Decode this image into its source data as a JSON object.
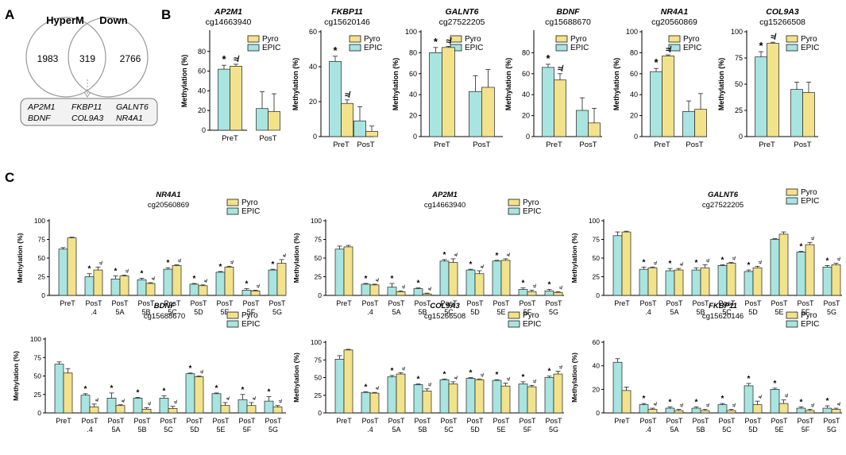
{
  "panels": {
    "A": "A",
    "B": "B",
    "C": "C"
  },
  "venn": {
    "left_label": "HyperM",
    "right_label": "Down",
    "left_only": "1983",
    "overlap": "319",
    "right_only": "2766",
    "genes_row1": [
      "AP2M1",
      "FKBP11",
      "GALNT6"
    ],
    "genes_row2": [
      "BDNF",
      "COL9A3",
      "NR4A1"
    ]
  },
  "colors": {
    "pyro": "#f2e28b",
    "epic": "#a8e4e0",
    "stroke": "#333333",
    "venn_circle": "#999999",
    "box_fill": "#f2f2f2"
  },
  "chart_data": [
    {
      "id": "B1",
      "type": "bar",
      "panel": "B",
      "title": "AP2M1",
      "subtitle": "cg14663940",
      "ylabel": "Methylation (%)",
      "ylim": [
        0,
        100
      ],
      "yticks": [
        0,
        20,
        40,
        60,
        80
      ],
      "categories": [
        "PreT",
        "PosT"
      ],
      "series": [
        {
          "name": "Pyro",
          "values": [
            65,
            19
          ],
          "errors": [
            2,
            18
          ]
        },
        {
          "name": "EPIC",
          "values": [
            62,
            22
          ],
          "errors": [
            4,
            17
          ]
        }
      ],
      "annotations": [
        {
          "category": "PreT",
          "series": "EPIC",
          "text": "*"
        },
        {
          "category": "PreT",
          "series": "Pyro",
          "text": "≉"
        }
      ],
      "legend": [
        "Pyro",
        "EPIC"
      ]
    },
    {
      "id": "B2",
      "type": "bar",
      "panel": "B",
      "title": "FKBP11",
      "subtitle": "cg15620146",
      "ylabel": "Methylation (%)",
      "ylim": [
        0,
        60
      ],
      "yticks": [
        0,
        20,
        40,
        60
      ],
      "categories": [
        "PreT",
        "PosT"
      ],
      "series": [
        {
          "name": "Pyro",
          "values": [
            19,
            3
          ],
          "errors": [
            2,
            3
          ]
        },
        {
          "name": "EPIC",
          "values": [
            43,
            9
          ],
          "errors": [
            3,
            8
          ]
        }
      ],
      "annotations": [
        {
          "category": "PreT",
          "series": "EPIC",
          "text": "*"
        },
        {
          "category": "PreT",
          "series": "Pyro",
          "text": "≉"
        }
      ],
      "legend": [
        "Pyro",
        "EPIC"
      ]
    },
    {
      "id": "B3",
      "type": "bar",
      "panel": "B",
      "title": "GALNT6",
      "subtitle": "cg27522205",
      "ylabel": "Methylation (%)",
      "ylim": [
        0,
        100
      ],
      "yticks": [
        0,
        20,
        40,
        60,
        80,
        100
      ],
      "categories": [
        "PreT",
        "PosT"
      ],
      "series": [
        {
          "name": "Pyro",
          "values": [
            85,
            47
          ],
          "errors": [
            1,
            17
          ]
        },
        {
          "name": "EPIC",
          "values": [
            80,
            43
          ],
          "errors": [
            5,
            15
          ]
        }
      ],
      "annotations": [
        {
          "category": "PreT",
          "series": "EPIC",
          "text": "*"
        },
        {
          "category": "PreT",
          "series": "Pyro",
          "text": "≉"
        }
      ],
      "legend": [
        "Pyro",
        "EPIC"
      ]
    },
    {
      "id": "B4",
      "type": "bar",
      "panel": "B",
      "title": "BDNF",
      "subtitle": "cg15688670",
      "ylabel": "Methylation (%)",
      "ylim": [
        0,
        100
      ],
      "yticks": [
        0,
        20,
        40,
        60,
        80
      ],
      "categories": [
        "PreT",
        "PosT"
      ],
      "series": [
        {
          "name": "Pyro",
          "values": [
            54,
            13
          ],
          "errors": [
            6,
            14
          ]
        },
        {
          "name": "EPIC",
          "values": [
            66,
            25
          ],
          "errors": [
            3,
            12
          ]
        }
      ],
      "annotations": [
        {
          "category": "PreT",
          "series": "EPIC",
          "text": "*"
        },
        {
          "category": "PreT",
          "series": "Pyro",
          "text": "≉"
        }
      ],
      "legend": [
        "Pyro",
        "EPIC"
      ]
    },
    {
      "id": "B5",
      "type": "bar",
      "panel": "B",
      "title": "NR4A1",
      "subtitle": "cg20560869",
      "ylabel": "Methylation (%)",
      "ylim": [
        0,
        100
      ],
      "yticks": [
        0,
        20,
        40,
        60,
        80,
        100
      ],
      "categories": [
        "PreT",
        "PosT"
      ],
      "series": [
        {
          "name": "Pyro",
          "values": [
            77,
            26
          ],
          "errors": [
            1,
            15
          ]
        },
        {
          "name": "EPIC",
          "values": [
            62,
            24
          ],
          "errors": [
            3,
            10
          ]
        }
      ],
      "annotations": [
        {
          "category": "PreT",
          "series": "EPIC",
          "text": "*"
        },
        {
          "category": "PreT",
          "series": "Pyro",
          "text": "≉"
        }
      ],
      "legend": [
        "Pyro",
        "EPIC"
      ]
    },
    {
      "id": "B6",
      "type": "bar",
      "panel": "B",
      "title": "COL9A3",
      "subtitle": "cg15266508",
      "ylabel": "Methylation (%)",
      "ylim": [
        0,
        100
      ],
      "yticks": [
        0,
        25,
        50,
        75,
        100
      ],
      "categories": [
        "PreT",
        "PosT"
      ],
      "series": [
        {
          "name": "Pyro",
          "values": [
            89,
            42
          ],
          "errors": [
            1,
            10
          ]
        },
        {
          "name": "EPIC",
          "values": [
            76,
            45
          ],
          "errors": [
            5,
            7
          ]
        }
      ],
      "annotations": [
        {
          "category": "PreT",
          "series": "EPIC",
          "text": "*"
        },
        {
          "category": "PreT",
          "series": "Pyro",
          "text": "≉"
        }
      ],
      "legend": [
        "Pyro",
        "EPIC"
      ]
    },
    {
      "id": "C1",
      "type": "bar",
      "panel": "C",
      "title": "NR4A1",
      "subtitle": "cg20560869",
      "ylabel": "Methylation (%)",
      "ylim": [
        0,
        100
      ],
      "yticks": [
        0,
        25,
        50,
        75,
        100
      ],
      "categories": [
        "PreT",
        "PosT\n.4",
        "PosT\n5A",
        "PosT\n5B",
        "PosT\n5C",
        "PosT\n5D",
        "PosT\n5E",
        "PosT\n5F",
        "PosT\n5G"
      ],
      "series": [
        {
          "name": "EPIC",
          "values": [
            62,
            25,
            22,
            21,
            35,
            15,
            31,
            7,
            34
          ],
          "errors": [
            2,
            4,
            4,
            2,
            2,
            1,
            1,
            2,
            1
          ]
        },
        {
          "name": "Pyro",
          "values": [
            77,
            34,
            26,
            16,
            40,
            13,
            38,
            6,
            43
          ],
          "errors": [
            1,
            4,
            1,
            1,
            1,
            1,
            1,
            1,
            5
          ]
        }
      ],
      "sig": [
        false,
        true,
        true,
        true,
        true,
        true,
        true,
        true,
        true
      ],
      "legend": [
        "Pyro",
        "EPIC"
      ]
    },
    {
      "id": "C2",
      "type": "bar",
      "panel": "C",
      "title": "AP2M1",
      "subtitle": "cg14663940",
      "ylabel": "Methylation (%)",
      "ylim": [
        0,
        100
      ],
      "yticks": [
        0,
        25,
        50,
        75,
        100
      ],
      "categories": [
        "PreT",
        "PosT\n.4",
        "PosT\n5A",
        "PosT\n5B",
        "PosT\n5C",
        "PosT\n5D",
        "PosT\n5E",
        "PosT\n5F",
        "PosT\n5G"
      ],
      "series": [
        {
          "name": "EPIC",
          "values": [
            62,
            15,
            11,
            9,
            46,
            34,
            46,
            8,
            6
          ],
          "errors": [
            4,
            1,
            5,
            1,
            2,
            1,
            1,
            2,
            2
          ]
        },
        {
          "name": "Pyro",
          "values": [
            65,
            14,
            5,
            2,
            44,
            29,
            47,
            5,
            4
          ],
          "errors": [
            2,
            1,
            1,
            1,
            5,
            4,
            2,
            2,
            1
          ]
        }
      ],
      "sig": [
        false,
        true,
        true,
        true,
        true,
        true,
        true,
        true,
        true
      ],
      "legend": [
        "Pyro",
        "EPIC"
      ]
    },
    {
      "id": "C3",
      "type": "bar",
      "panel": "C",
      "title": "GALNT6",
      "subtitle": "cg27522205",
      "ylabel": "Methylation (%)",
      "ylim": [
        0,
        100
      ],
      "yticks": [
        0,
        25,
        50,
        75,
        100
      ],
      "categories": [
        "PreT",
        "PosT\n.4",
        "PosT\n5A",
        "PosT\n5B",
        "PosT\n5C",
        "PosT\n5D",
        "PosT\n5E",
        "PosT\n5F",
        "PosT\n5G"
      ],
      "series": [
        {
          "name": "EPIC",
          "values": [
            80,
            35,
            33,
            34,
            40,
            32,
            75,
            58,
            38
          ],
          "errors": [
            5,
            3,
            3,
            3,
            1,
            2,
            1,
            1,
            2
          ]
        },
        {
          "name": "Pyro",
          "values": [
            85,
            37,
            34,
            37,
            43,
            37,
            82,
            68,
            41
          ],
          "errors": [
            1,
            1,
            2,
            4,
            1,
            2,
            3,
            3,
            2
          ]
        }
      ],
      "sig": [
        false,
        true,
        true,
        true,
        true,
        true,
        false,
        true,
        true
      ],
      "legend": [
        "Pyro",
        "EPIC"
      ]
    },
    {
      "id": "C4",
      "type": "bar",
      "panel": "C",
      "title": "BDNF",
      "subtitle": "cg15688670",
      "ylabel": "Methylation (%)",
      "ylim": [
        0,
        100
      ],
      "yticks": [
        0,
        25,
        50,
        75,
        100
      ],
      "categories": [
        "PreT",
        "PosT\n.4",
        "PosT\n5A",
        "PosT\n5B",
        "PosT\n5C",
        "PosT\n5D",
        "PosT\n5E",
        "PosT\n5F",
        "PosT\n5G"
      ],
      "series": [
        {
          "name": "EPIC",
          "values": [
            66,
            24,
            20,
            20,
            20,
            53,
            26,
            18,
            16
          ],
          "errors": [
            3,
            2,
            7,
            1,
            3,
            1,
            1,
            7,
            6
          ]
        },
        {
          "name": "Pyro",
          "values": [
            54,
            8,
            10,
            5,
            6,
            49,
            10,
            10,
            8
          ],
          "errors": [
            6,
            4,
            1,
            2,
            3,
            1,
            4,
            4,
            2
          ]
        }
      ],
      "sig": [
        false,
        true,
        true,
        true,
        true,
        true,
        true,
        true,
        true
      ],
      "legend": [
        "Pyro",
        "EPIC"
      ]
    },
    {
      "id": "C5",
      "type": "bar",
      "panel": "C",
      "title": "COL9A3",
      "subtitle": "cg15266508",
      "ylabel": "Methylation (%)",
      "ylim": [
        0,
        100
      ],
      "yticks": [
        0,
        25,
        50,
        75,
        100
      ],
      "categories": [
        "PreT",
        "PosT\n.4",
        "PosT\n5A",
        "PosT\n5B",
        "PosT\n5C",
        "PosT\n5D",
        "PosT\n5E",
        "PosT\n5F",
        "PosT\n5G"
      ],
      "series": [
        {
          "name": "EPIC",
          "values": [
            76,
            29,
            51,
            40,
            47,
            49,
            46,
            41,
            50
          ],
          "errors": [
            5,
            1,
            2,
            1,
            1,
            1,
            1,
            3,
            2
          ]
        },
        {
          "name": "Pyro",
          "values": [
            89,
            28,
            55,
            31,
            41,
            47,
            38,
            37,
            55
          ],
          "errors": [
            1,
            1,
            2,
            3,
            3,
            1,
            4,
            2,
            4
          ]
        }
      ],
      "sig": [
        false,
        true,
        true,
        true,
        true,
        true,
        true,
        true,
        true
      ],
      "legend": [
        "Pyro",
        "EPIC"
      ]
    },
    {
      "id": "C6",
      "type": "bar",
      "panel": "C",
      "title": "FKBP11",
      "subtitle": "cg15620146",
      "ylabel": "Methylation (%)",
      "ylim": [
        0,
        60
      ],
      "yticks": [
        0,
        20,
        40,
        60
      ],
      "categories": [
        "PreT",
        "PosT\n.4",
        "PosT\n5A",
        "PosT\n5B",
        "PosT\n5C",
        "PosT\n5D",
        "PosT\n5E",
        "PosT\n5F",
        "PosT\n5G"
      ],
      "series": [
        {
          "name": "EPIC",
          "values": [
            43,
            7,
            4,
            4,
            7,
            23,
            20,
            4,
            4
          ],
          "errors": [
            3,
            1,
            1,
            1,
            1,
            2,
            1,
            1,
            2
          ]
        },
        {
          "name": "Pyro",
          "values": [
            19,
            3,
            2,
            2,
            2,
            7,
            8,
            2,
            3
          ],
          "errors": [
            3,
            1,
            1,
            1,
            1,
            3,
            3,
            1,
            1
          ]
        }
      ],
      "sig": [
        false,
        true,
        true,
        true,
        true,
        true,
        true,
        true,
        true
      ],
      "legend": [
        "Pyro",
        "EPIC"
      ]
    }
  ]
}
